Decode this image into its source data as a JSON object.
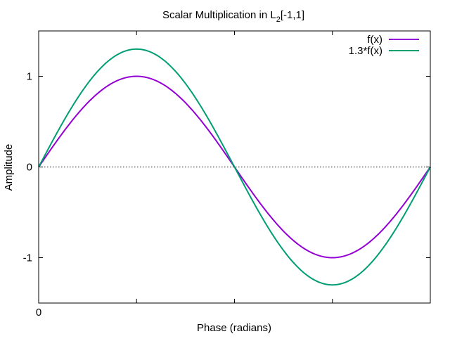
{
  "chart_data": {
    "type": "line",
    "title": "Scalar Multiplication in L",
    "title_subscript": "2",
    "title_suffix": "[-1,1]",
    "xlabel": "Phase (radians)",
    "ylabel": "Amplitude",
    "x_ticks": [
      {
        "value": 0,
        "label": "0"
      },
      {
        "value": 1.5708,
        "label": ""
      },
      {
        "value": 3.1416,
        "label": ""
      },
      {
        "value": 4.7124,
        "label": ""
      },
      {
        "value": 6.2832,
        "label": ""
      }
    ],
    "y_ticks": [
      {
        "value": 1,
        "label": "1"
      },
      {
        "value": 0,
        "label": "0"
      },
      {
        "value": -1,
        "label": "-1"
      }
    ],
    "xlim": [
      0,
      6.2832
    ],
    "ylim": [
      -1.5,
      1.5
    ],
    "zero_line": true,
    "grid": false,
    "legend_position": "top-right",
    "series": [
      {
        "name": "f(x)",
        "color": "#9400d3",
        "amplitude": 1.0,
        "function": "sin"
      },
      {
        "name": "1.3*f(x)",
        "color": "#009e73",
        "amplitude": 1.3,
        "function": "sin"
      }
    ]
  }
}
